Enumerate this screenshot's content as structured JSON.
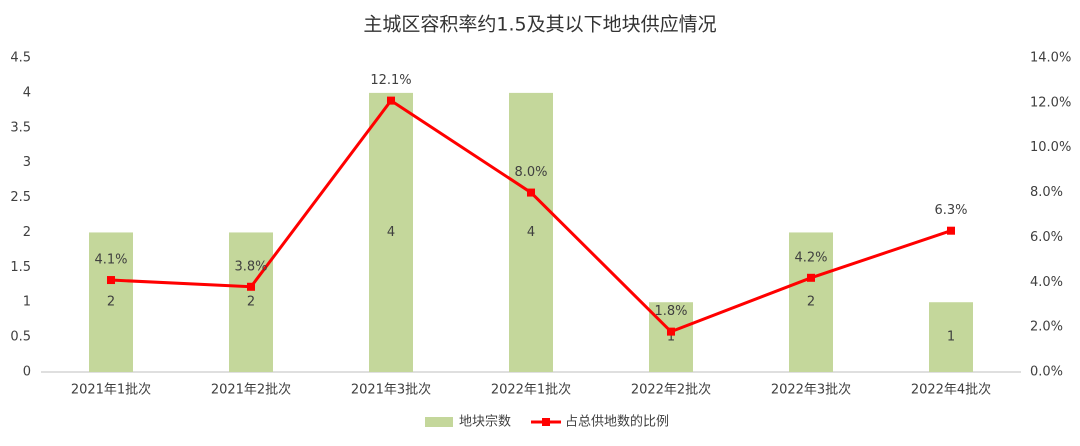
{
  "chart_data": {
    "type": "combo",
    "title": "主城区容积率约1.5及其以下地块供应情况",
    "categories": [
      "2021年1批次",
      "2021年2批次",
      "2021年3批次",
      "2022年1批次",
      "2022年2批次",
      "2022年3批次",
      "2022年4批次"
    ],
    "series": [
      {
        "name": "地块宗数",
        "type": "bar",
        "color": "#c4d79b",
        "values": [
          2,
          2,
          4,
          4,
          1,
          2,
          1
        ]
      },
      {
        "name": "占总供地数的比例",
        "type": "line",
        "axis": "y2",
        "color": "#ff0000",
        "values": [
          4.1,
          3.8,
          12.1,
          8.0,
          1.8,
          4.2,
          6.3
        ],
        "value_labels": [
          "4.1%",
          "3.8%",
          "12.1%",
          "8.0%",
          "1.8%",
          "4.2%",
          "6.3%"
        ]
      }
    ],
    "ylim": [
      0,
      4.5
    ],
    "yticks": [
      0,
      0.5,
      1,
      1.5,
      2,
      2.5,
      3,
      3.5,
      4,
      4.5
    ],
    "y2lim": [
      0,
      14
    ],
    "y2ticks": [
      {
        "value": 0,
        "label": "0.0%"
      },
      {
        "value": 2,
        "label": "2.0%"
      },
      {
        "value": 4,
        "label": "4.0%"
      },
      {
        "value": 6,
        "label": "6.0%"
      },
      {
        "value": 8,
        "label": "8.0%"
      },
      {
        "value": 10,
        "label": "10.0%"
      },
      {
        "value": 12,
        "label": "12.0%"
      },
      {
        "value": 14,
        "label": "14.0%"
      }
    ],
    "grid": false,
    "legend": "bottom"
  }
}
